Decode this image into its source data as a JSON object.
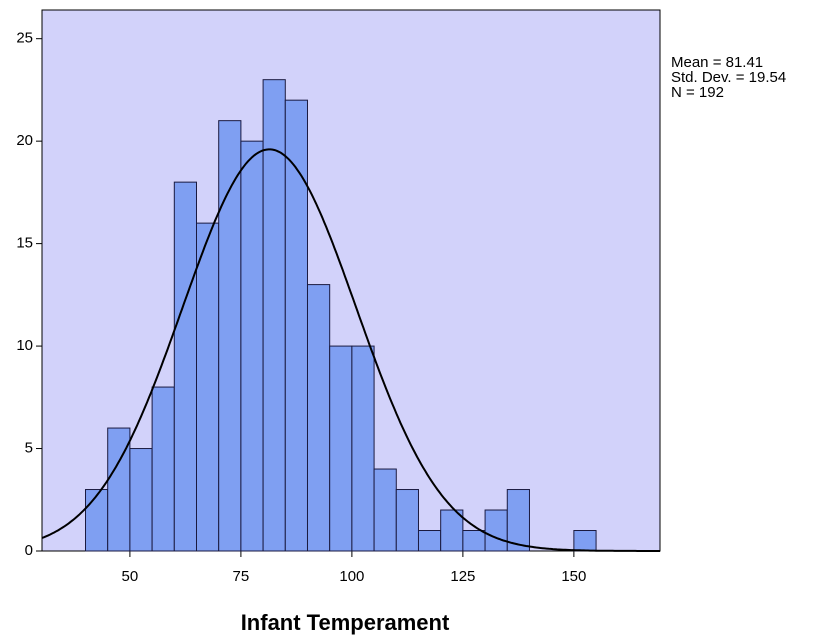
{
  "chart_data": {
    "type": "histogram",
    "x_label": "Infant Temperament",
    "bins": [
      40,
      45,
      50,
      55,
      60,
      65,
      70,
      75,
      80,
      85,
      90,
      95,
      100,
      105,
      110,
      115,
      120,
      125,
      130,
      135,
      140,
      145,
      150,
      155
    ],
    "values": [
      3,
      6,
      5,
      8,
      18,
      16,
      21,
      20,
      23,
      22,
      13,
      10,
      10,
      4,
      3,
      1,
      2,
      1,
      2,
      3,
      0,
      0,
      1
    ],
    "color": "#7f9ff2",
    "xlim": [
      30.2,
      169.4
    ],
    "ylim": [
      0,
      26.4
    ],
    "xticks": [
      50,
      75,
      100,
      125,
      150
    ],
    "yticks": [
      0,
      5,
      10,
      15,
      20,
      25
    ],
    "stats": [
      {
        "value": 81.41,
        "label": "Mean = 81.41"
      },
      {
        "value": 19.54,
        "label": "Std. Dev. = 19.54"
      },
      {
        "value": 192,
        "label": "N = 192"
      }
    ]
  }
}
